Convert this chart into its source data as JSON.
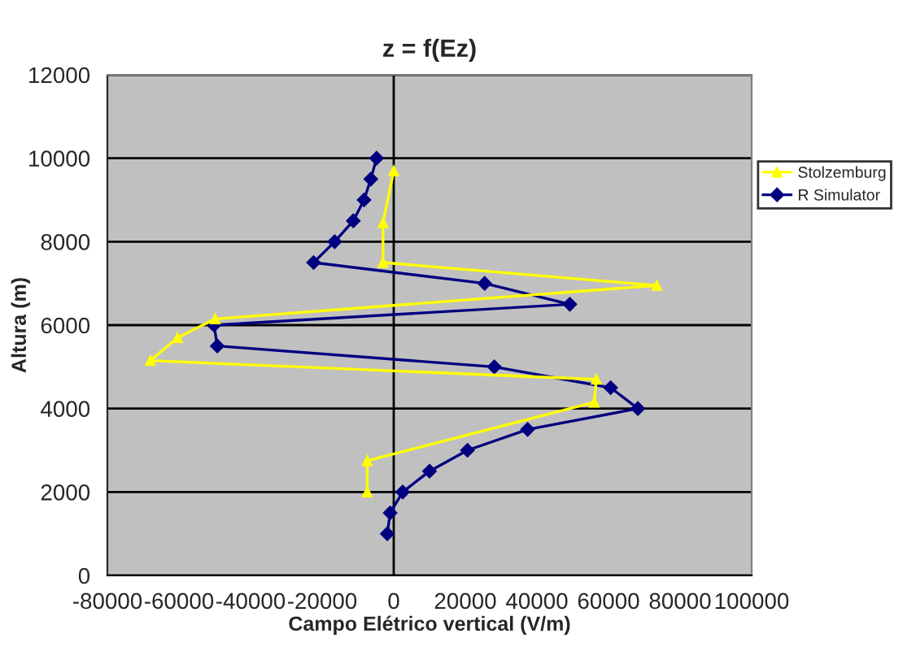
{
  "chart_data": {
    "type": "line",
    "title": "z = f(Ez)",
    "xlabel": "Campo Elétrico vertical (V/m)",
    "ylabel": "Altura (m)",
    "xlim": [
      -80000,
      100000
    ],
    "xticks": [
      -80000,
      -60000,
      -40000,
      -20000,
      0,
      20000,
      40000,
      60000,
      80000,
      100000
    ],
    "ylim": [
      0,
      12000
    ],
    "yticks": [
      0,
      2000,
      4000,
      6000,
      8000,
      10000,
      12000
    ],
    "grid": "y",
    "legend": "right",
    "ref_lines": [
      {
        "axis": "x",
        "value": 0,
        "color": "#000000"
      }
    ],
    "series": [
      {
        "name": "Stolzemburg",
        "color": "#ffff00",
        "marker": "triangle",
        "x": [
          0,
          -3000,
          -3000,
          73500,
          -49900,
          -60400,
          -68000,
          56600,
          56000,
          -7400,
          -7400
        ],
        "values": [
          9700,
          8450,
          7500,
          6950,
          6150,
          5700,
          5150,
          4700,
          4150,
          2750,
          2000
        ]
      },
      {
        "name": "R Simulator",
        "color": "#000080",
        "marker": "diamond",
        "x": [
          -1800,
          -1000,
          2500,
          10000,
          20600,
          37400,
          68200,
          60600,
          28100,
          -49300,
          -50200,
          49200,
          25400,
          -22400,
          -16500,
          -11300,
          -8300,
          -6400,
          -4800
        ],
        "values": [
          1000,
          1500,
          2000,
          2500,
          3000,
          3500,
          4000,
          4500,
          5000,
          5500,
          6000,
          6500,
          7000,
          7500,
          8000,
          8500,
          9000,
          9500,
          10000
        ]
      }
    ]
  }
}
